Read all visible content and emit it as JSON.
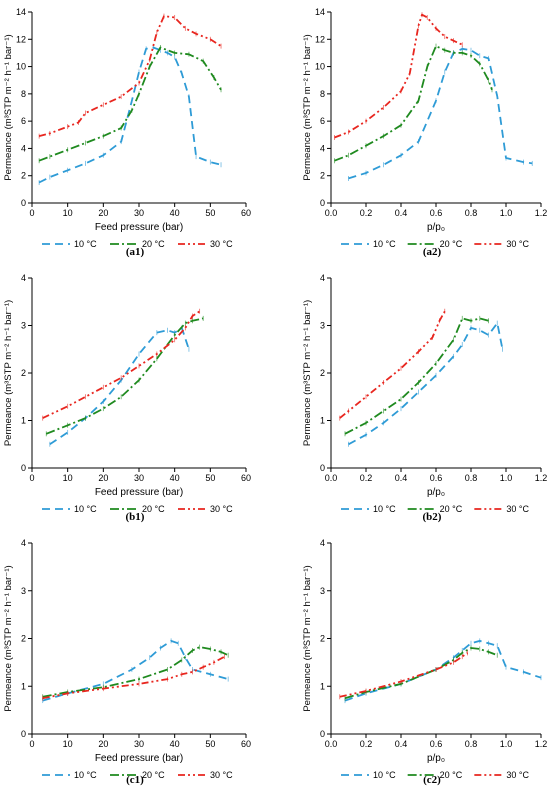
{
  "colors": {
    "10": "#2e9bd6",
    "20": "#1f8a1f",
    "30": "#e8261f"
  },
  "legend_labels": [
    "10 °C",
    "20 °C",
    "30 °C"
  ],
  "ylabel": "Permeance (m³STP m⁻² h⁻¹ bar⁻¹)",
  "chart_data": [
    {
      "id": "a1",
      "type": "line",
      "caption": "(a1)",
      "xlabel": "Feed pressure (bar)",
      "xlim": [
        0,
        60
      ],
      "ylim": [
        0,
        14
      ],
      "xticks": [
        "0",
        "10",
        "20",
        "30",
        "40",
        "50",
        "60"
      ],
      "yticks": [
        "0",
        "2",
        "4",
        "6",
        "8",
        "10",
        "12",
        "14"
      ],
      "series": [
        {
          "name": "10 °C",
          "x": [
            2,
            5,
            10,
            15,
            20,
            25,
            28,
            30,
            32,
            34,
            36,
            38,
            40,
            42,
            44,
            46,
            50,
            53
          ],
          "y": [
            1.5,
            1.9,
            2.4,
            2.9,
            3.5,
            4.5,
            7.5,
            9.6,
            11.3,
            11.4,
            11.2,
            11.0,
            10.7,
            9.5,
            7.8,
            3.4,
            3.0,
            2.8
          ]
        },
        {
          "name": "20 °C",
          "x": [
            2,
            5,
            10,
            15,
            20,
            25,
            28,
            30,
            33,
            36,
            40,
            44,
            48,
            51,
            53
          ],
          "y": [
            3.1,
            3.4,
            3.9,
            4.4,
            4.9,
            5.5,
            6.8,
            8.0,
            10.0,
            11.4,
            11.0,
            10.9,
            10.4,
            9.2,
            8.3
          ]
        },
        {
          "name": "30 °C",
          "x": [
            2,
            5,
            10,
            13,
            15,
            20,
            25,
            30,
            33,
            35,
            37,
            40,
            43,
            46,
            50,
            53
          ],
          "y": [
            4.9,
            5.1,
            5.6,
            5.9,
            6.6,
            7.2,
            7.8,
            8.8,
            10.5,
            12.5,
            13.7,
            13.6,
            12.8,
            12.4,
            12.0,
            11.5
          ]
        }
      ]
    },
    {
      "id": "a2",
      "type": "line",
      "caption": "(a2)",
      "xlabel": "p/p₀",
      "xlim": [
        0,
        1.2
      ],
      "ylim": [
        0,
        14
      ],
      "xticks": [
        "0.0",
        "0.2",
        "0.4",
        "0.6",
        "0.8",
        "1.0",
        "1.2"
      ],
      "yticks": [
        "0",
        "2",
        "4",
        "6",
        "8",
        "10",
        "12",
        "14"
      ],
      "series": [
        {
          "name": "10 °C",
          "x": [
            0.1,
            0.2,
            0.3,
            0.4,
            0.5,
            0.6,
            0.65,
            0.7,
            0.75,
            0.8,
            0.85,
            0.9,
            0.95,
            1.0,
            1.1,
            1.15
          ],
          "y": [
            1.8,
            2.2,
            2.8,
            3.5,
            4.5,
            7.5,
            9.6,
            11.0,
            11.3,
            11.2,
            10.8,
            10.6,
            7.8,
            3.3,
            3.0,
            2.9
          ]
        },
        {
          "name": "20 °C",
          "x": [
            0.02,
            0.1,
            0.2,
            0.3,
            0.4,
            0.5,
            0.55,
            0.6,
            0.65,
            0.7,
            0.75,
            0.8,
            0.85,
            0.9,
            0.92
          ],
          "y": [
            3.1,
            3.5,
            4.2,
            4.9,
            5.7,
            7.5,
            10.0,
            11.5,
            11.2,
            11.0,
            11.0,
            10.8,
            10.2,
            9.0,
            8.3
          ]
        },
        {
          "name": "30 °C",
          "x": [
            0.02,
            0.1,
            0.2,
            0.3,
            0.4,
            0.45,
            0.5,
            0.52,
            0.55,
            0.6,
            0.65,
            0.7,
            0.75
          ],
          "y": [
            4.8,
            5.2,
            6.0,
            7.0,
            8.2,
            9.5,
            13.0,
            13.8,
            13.6,
            12.8,
            12.2,
            11.9,
            11.6
          ]
        }
      ]
    },
    {
      "id": "b1",
      "type": "line",
      "caption": "(b1)",
      "xlabel": "Feed pressure (bar)",
      "xlim": [
        0,
        60
      ],
      "ylim": [
        0,
        4
      ],
      "xticks": [
        "0",
        "10",
        "20",
        "30",
        "40",
        "50",
        "60"
      ],
      "yticks": [
        "0",
        "1",
        "2",
        "3",
        "4"
      ],
      "series": [
        {
          "name": "10 °C",
          "x": [
            5,
            10,
            15,
            20,
            25,
            30,
            35,
            38,
            40,
            42,
            44
          ],
          "y": [
            0.5,
            0.75,
            1.05,
            1.4,
            1.85,
            2.4,
            2.85,
            2.9,
            2.85,
            2.95,
            2.5
          ]
        },
        {
          "name": "20 °C",
          "x": [
            4,
            10,
            15,
            20,
            25,
            30,
            35,
            40,
            43,
            45,
            48
          ],
          "y": [
            0.72,
            0.9,
            1.05,
            1.25,
            1.5,
            1.85,
            2.3,
            2.8,
            3.05,
            3.1,
            3.15
          ]
        },
        {
          "name": "30 °C",
          "x": [
            3,
            10,
            15,
            20,
            25,
            30,
            35,
            40,
            43,
            45,
            47
          ],
          "y": [
            1.05,
            1.3,
            1.5,
            1.7,
            1.9,
            2.15,
            2.4,
            2.7,
            2.95,
            3.2,
            3.3
          ]
        }
      ]
    },
    {
      "id": "b2",
      "type": "line",
      "caption": "(b2)",
      "xlabel": "p/p₀",
      "xlim": [
        0,
        1.2
      ],
      "ylim": [
        0,
        4
      ],
      "xticks": [
        "0.0",
        "0.2",
        "0.4",
        "0.6",
        "0.8",
        "1.0",
        "1.2"
      ],
      "yticks": [
        "0",
        "1",
        "2",
        "3",
        "4"
      ],
      "series": [
        {
          "name": "10 °C",
          "x": [
            0.1,
            0.2,
            0.3,
            0.4,
            0.5,
            0.6,
            0.7,
            0.75,
            0.8,
            0.85,
            0.9,
            0.95,
            0.98
          ],
          "y": [
            0.5,
            0.7,
            0.95,
            1.25,
            1.6,
            1.95,
            2.35,
            2.6,
            2.95,
            2.9,
            2.8,
            3.05,
            2.5
          ]
        },
        {
          "name": "20 °C",
          "x": [
            0.08,
            0.2,
            0.3,
            0.4,
            0.5,
            0.6,
            0.7,
            0.75,
            0.8,
            0.85,
            0.9
          ],
          "y": [
            0.72,
            0.95,
            1.2,
            1.45,
            1.8,
            2.2,
            2.7,
            3.15,
            3.1,
            3.15,
            3.1
          ]
        },
        {
          "name": "30 °C",
          "x": [
            0.05,
            0.1,
            0.2,
            0.3,
            0.4,
            0.5,
            0.58,
            0.62,
            0.65
          ],
          "y": [
            1.05,
            1.2,
            1.5,
            1.8,
            2.1,
            2.45,
            2.75,
            3.1,
            3.3
          ]
        }
      ]
    },
    {
      "id": "c1",
      "type": "line",
      "caption": "(c1)",
      "xlabel": "Feed pressure (bar)",
      "xlim": [
        0,
        60
      ],
      "ylim": [
        0,
        4
      ],
      "xticks": [
        "0",
        "10",
        "20",
        "30",
        "40",
        "50",
        "60"
      ],
      "yticks": [
        "0",
        "1",
        "2",
        "3",
        "4"
      ],
      "series": [
        {
          "name": "10 °C",
          "x": [
            3,
            10,
            20,
            28,
            33,
            36,
            39,
            41,
            43,
            45,
            50,
            55
          ],
          "y": [
            0.7,
            0.85,
            1.05,
            1.35,
            1.6,
            1.8,
            1.95,
            1.9,
            1.6,
            1.35,
            1.25,
            1.15
          ]
        },
        {
          "name": "20 °C",
          "x": [
            3,
            10,
            20,
            30,
            38,
            42,
            45,
            47,
            50,
            53,
            55
          ],
          "y": [
            0.78,
            0.88,
            0.98,
            1.15,
            1.35,
            1.55,
            1.75,
            1.82,
            1.78,
            1.72,
            1.65
          ]
        },
        {
          "name": "30 °C",
          "x": [
            3,
            10,
            20,
            30,
            38,
            42,
            45,
            48,
            51,
            54
          ],
          "y": [
            0.75,
            0.85,
            0.95,
            1.05,
            1.15,
            1.25,
            1.3,
            1.4,
            1.5,
            1.62
          ]
        }
      ]
    },
    {
      "id": "c2",
      "type": "line",
      "caption": "(c2)",
      "xlabel": "p/p₀",
      "xlim": [
        0,
        1.2
      ],
      "ylim": [
        0,
        4
      ],
      "xticks": [
        "0.0",
        "0.2",
        "0.4",
        "0.6",
        "0.8",
        "1.0",
        "1.2"
      ],
      "yticks": [
        "0",
        "1",
        "2",
        "3",
        "4"
      ],
      "series": [
        {
          "name": "10 °C",
          "x": [
            0.08,
            0.2,
            0.4,
            0.6,
            0.7,
            0.75,
            0.8,
            0.85,
            0.9,
            0.95,
            1.0,
            1.1,
            1.2
          ],
          "y": [
            0.7,
            0.85,
            1.05,
            1.35,
            1.6,
            1.75,
            1.9,
            1.95,
            1.9,
            1.85,
            1.4,
            1.3,
            1.18
          ]
        },
        {
          "name": "20 °C",
          "x": [
            0.08,
            0.2,
            0.4,
            0.6,
            0.7,
            0.75,
            0.8,
            0.85,
            0.9,
            0.95
          ],
          "y": [
            0.75,
            0.88,
            1.05,
            1.35,
            1.55,
            1.7,
            1.8,
            1.78,
            1.72,
            1.65
          ]
        },
        {
          "name": "30 °C",
          "x": [
            0.05,
            0.2,
            0.4,
            0.6,
            0.7,
            0.75,
            0.78
          ],
          "y": [
            0.78,
            0.9,
            1.1,
            1.35,
            1.5,
            1.62,
            1.7
          ]
        }
      ]
    }
  ]
}
